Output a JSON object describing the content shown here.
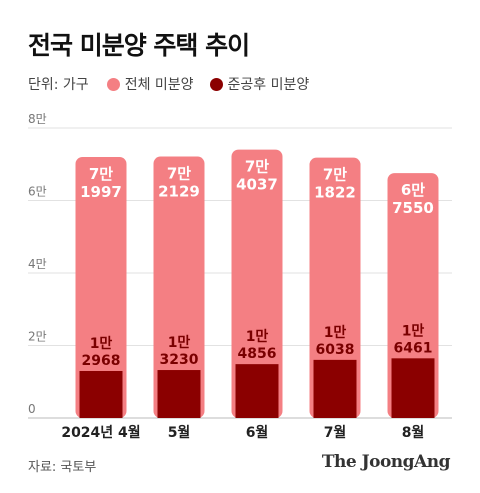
{
  "title": "전국 미분양 주택 추이",
  "legend": {
    "unit": "단위: 가구",
    "items": [
      {
        "label": "전체 미분양",
        "color": "#f47f83"
      },
      {
        "label": "준공후 미분양",
        "color": "#8b0000"
      }
    ]
  },
  "source": "자료: 국토부",
  "brand": "The JoongAng",
  "chart_data": {
    "type": "bar",
    "categories": [
      "2024년 4월",
      "5월",
      "6월",
      "7월",
      "8월"
    ],
    "series": [
      {
        "name": "전체 미분양",
        "values": [
          71997,
          72129,
          74037,
          71822,
          67550
        ],
        "labels": [
          [
            "7만",
            "1997"
          ],
          [
            "7만",
            "2129"
          ],
          [
            "7만",
            "4037"
          ],
          [
            "7만",
            "1822"
          ],
          [
            "6만",
            "7550"
          ]
        ],
        "color": "#f47f83"
      },
      {
        "name": "준공후 미분양",
        "values": [
          12968,
          13230,
          14856,
          16038,
          16461
        ],
        "labels": [
          [
            "1만",
            "2968"
          ],
          [
            "1만",
            "3230"
          ],
          [
            "1만",
            "4856"
          ],
          [
            "1만",
            "6038"
          ],
          [
            "1만",
            "6461"
          ]
        ],
        "color": "#8b0000"
      }
    ],
    "yticks": [
      {
        "value": 0,
        "label": "0"
      },
      {
        "value": 20000,
        "label": "2만"
      },
      {
        "value": 40000,
        "label": "4만"
      },
      {
        "value": 60000,
        "label": "6만"
      },
      {
        "value": 80000,
        "label": "8만"
      }
    ],
    "ylim": [
      0,
      80000
    ],
    "grid": true
  }
}
